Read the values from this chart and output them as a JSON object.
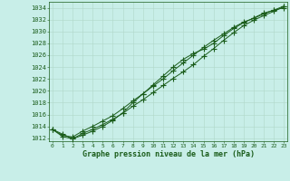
{
  "title": "Graphe pression niveau de la mer (hPa)",
  "xlabel_hours": [
    0,
    1,
    2,
    3,
    4,
    5,
    6,
    7,
    8,
    9,
    10,
    11,
    12,
    13,
    14,
    15,
    16,
    17,
    18,
    19,
    20,
    21,
    22,
    23
  ],
  "ylim": [
    1011.5,
    1035.0
  ],
  "yticks": [
    1012,
    1014,
    1016,
    1018,
    1020,
    1022,
    1024,
    1026,
    1028,
    1030,
    1032,
    1034
  ],
  "background_color": "#c8eee8",
  "grid_color": "#b0d8c8",
  "line_color": "#1a5c1a",
  "lines": [
    [
      1013.5,
      1012.7,
      1011.9,
      1012.8,
      1013.5,
      1014.3,
      1015.2,
      1016.2,
      1017.4,
      1018.5,
      1019.7,
      1020.9,
      1022.1,
      1023.2,
      1024.4,
      1025.8,
      1027.1,
      1028.5,
      1029.8,
      1031.0,
      1031.9,
      1032.7,
      1033.4,
      1034.2
    ],
    [
      1013.5,
      1012.5,
      1012.2,
      1013.2,
      1014.0,
      1014.9,
      1015.8,
      1017.0,
      1018.3,
      1019.5,
      1020.8,
      1022.0,
      1023.4,
      1024.7,
      1026.0,
      1027.3,
      1028.5,
      1029.6,
      1030.7,
      1031.6,
      1032.2,
      1033.0,
      1033.6,
      1034.3
    ],
    [
      1013.5,
      1012.3,
      1011.9,
      1012.5,
      1013.2,
      1014.0,
      1015.0,
      1016.3,
      1018.0,
      1019.5,
      1021.0,
      1022.5,
      1024.0,
      1025.3,
      1026.3,
      1027.0,
      1028.0,
      1029.3,
      1030.5,
      1031.5,
      1032.3,
      1033.1,
      1033.6,
      1034.0
    ]
  ]
}
